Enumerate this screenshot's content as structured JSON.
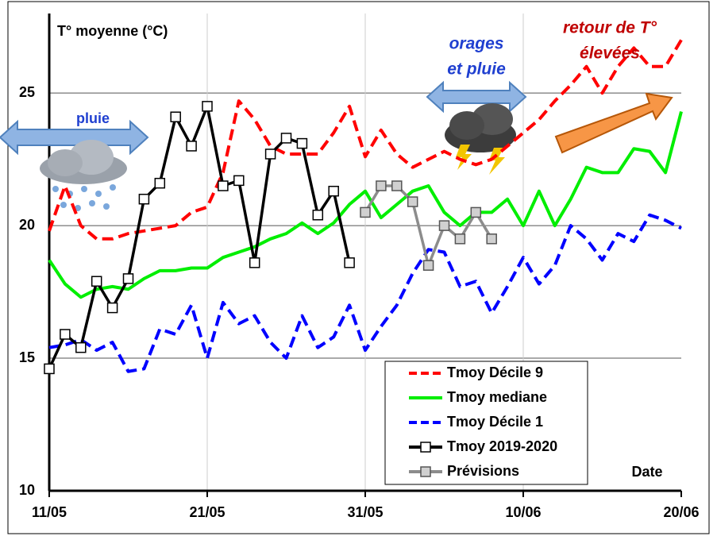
{
  "chart_data": {
    "type": "line",
    "y_label": "T° moyenne (°C)",
    "x_label": "Date",
    "categories": [
      "11/05",
      null,
      null,
      null,
      null,
      null,
      null,
      null,
      null,
      null,
      "21/05",
      null,
      null,
      null,
      null,
      null,
      null,
      null,
      null,
      null,
      "31/05",
      null,
      null,
      null,
      null,
      null,
      null,
      null,
      null,
      null,
      "10/06",
      null,
      null,
      null,
      null,
      null,
      null,
      null,
      null,
      null,
      "20/06"
    ],
    "ylim": [
      10,
      28
    ],
    "yticks": [
      10,
      15,
      20,
      25
    ],
    "grid": true,
    "legend": "lower right",
    "annotations": [
      "pluie",
      "orages",
      "et pluie",
      "retour de T°",
      "élevées"
    ],
    "series": [
      {
        "name": "Tmoy Décile 9",
        "color": "#ff0000",
        "dash": "dashed",
        "values": [
          19.8,
          21.5,
          20.0,
          19.5,
          19.5,
          19.7,
          19.8,
          19.9,
          20.0,
          20.5,
          20.7,
          22.0,
          24.7,
          24.0,
          23.0,
          22.7,
          22.7,
          22.7,
          23.5,
          24.5,
          22.6,
          23.6,
          22.7,
          22.2,
          22.5,
          22.8,
          22.5,
          22.3,
          22.5,
          23.0,
          23.5,
          24.0,
          24.7,
          25.3,
          26.0,
          25.0,
          26.0,
          26.7,
          26.0,
          26.0,
          27.0
        ]
      },
      {
        "name": "Tmoy mediane",
        "color": "#00ee00",
        "dash": "solid",
        "values": [
          18.7,
          17.8,
          17.3,
          17.6,
          17.7,
          17.6,
          18.0,
          18.3,
          18.3,
          18.4,
          18.4,
          18.8,
          19.0,
          19.2,
          19.5,
          19.7,
          20.1,
          19.7,
          20.1,
          20.8,
          21.3,
          20.3,
          20.8,
          21.3,
          21.5,
          20.5,
          20.0,
          20.5,
          20.5,
          21.0,
          20.0,
          21.3,
          20.0,
          21.0,
          22.2,
          22.0,
          22.0,
          22.9,
          22.8,
          22.0,
          24.3
        ]
      },
      {
        "name": "Tmoy Décile 1",
        "color": "#0000ff",
        "dash": "dashed",
        "values": [
          15.4,
          15.5,
          15.7,
          15.3,
          15.6,
          14.5,
          14.6,
          16.1,
          15.9,
          17.0,
          15.0,
          17.1,
          16.3,
          16.6,
          15.6,
          15.0,
          16.6,
          15.4,
          15.8,
          17.0,
          15.3,
          16.2,
          17.0,
          18.2,
          19.1,
          19.0,
          17.7,
          17.9,
          16.7,
          17.7,
          18.8,
          17.8,
          18.5,
          20.0,
          19.5,
          18.7,
          19.7,
          19.4,
          20.4,
          20.2,
          19.9
        ]
      },
      {
        "name": "Tmoy 2019-2020",
        "color": "#000000",
        "dash": "solid",
        "marker": "#ffffff",
        "values": [
          14.6,
          15.9,
          15.4,
          17.9,
          16.9,
          18.0,
          21.0,
          21.6,
          24.1,
          23.0,
          24.5,
          21.5,
          21.7,
          18.6,
          22.7,
          23.3,
          23.1,
          20.4,
          21.3,
          18.6,
          null,
          null,
          null,
          null,
          null,
          null,
          null,
          null,
          null,
          null,
          null,
          null,
          null,
          null,
          null,
          null,
          null,
          null,
          null,
          null,
          null
        ]
      },
      {
        "name": "Prévisions",
        "color": "#8c8c8c",
        "dash": "solid",
        "marker": "#d0d0d0",
        "values": [
          null,
          null,
          null,
          null,
          null,
          null,
          null,
          null,
          null,
          null,
          null,
          null,
          null,
          null,
          null,
          null,
          null,
          null,
          null,
          null,
          20.5,
          21.5,
          21.5,
          20.9,
          18.5,
          20.0,
          19.5,
          20.5,
          19.5,
          null,
          null,
          null,
          null,
          null,
          null,
          null,
          null,
          null,
          null,
          null,
          null
        ]
      }
    ]
  }
}
